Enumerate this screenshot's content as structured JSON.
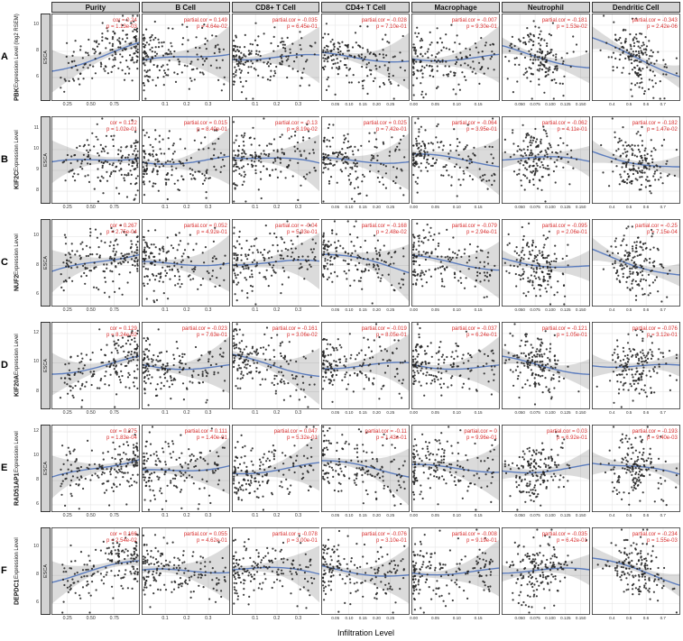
{
  "chart_data": {
    "type": "scatter",
    "xlabel": "Infiltration Level",
    "facet_label": "ESCA",
    "points_per_panel": 165,
    "colors": {
      "annotation": "#d93030",
      "fit_line": "#5b7cbe",
      "point": "#222222",
      "grid": "#e6e6e6",
      "strip_bg": "#d3d3d3",
      "band_opacity": 0.14
    },
    "columns": [
      {
        "label": "Purity",
        "range": [
          0.08,
          1.02
        ],
        "dist": "skewHigh",
        "center": 0.72,
        "xticks": [
          {
            "v": 0.25,
            "l": "0.25"
          },
          {
            "v": 0.5,
            "l": "0.50"
          },
          {
            "v": 0.75,
            "l": "0.75"
          }
        ]
      },
      {
        "label": "B Cell",
        "range": [
          -0.01,
          0.4
        ],
        "dist": "skewLow",
        "center": 0.16,
        "xticks": [
          {
            "v": 0.1,
            "l": "0.1"
          },
          {
            "v": 0.2,
            "l": "0.2"
          },
          {
            "v": 0.3,
            "l": "0.3"
          }
        ]
      },
      {
        "label": "CD8+ T Cell",
        "range": [
          -0.01,
          0.4
        ],
        "dist": "skewLow",
        "center": 0.16,
        "xticks": [
          {
            "v": 0.1,
            "l": "0.1"
          },
          {
            "v": 0.2,
            "l": "0.2"
          },
          {
            "v": 0.3,
            "l": "0.3"
          }
        ]
      },
      {
        "label": "CD4+ T Cell",
        "range": [
          0.0,
          0.32
        ],
        "dist": "skewLow",
        "center": 0.16,
        "xticks": [
          {
            "v": 0.05,
            "l": "0.05"
          },
          {
            "v": 0.1,
            "l": "0.10"
          },
          {
            "v": 0.15,
            "l": "0.15"
          },
          {
            "v": 0.2,
            "l": "0.20"
          },
          {
            "v": 0.25,
            "l": "0.25"
          }
        ]
      },
      {
        "label": "Macrophage",
        "range": [
          -0.005,
          0.2
        ],
        "dist": "skewLow",
        "center": 0.16,
        "xticks": [
          {
            "v": 0.0,
            "l": "0.00"
          },
          {
            "v": 0.05,
            "l": "0.05"
          },
          {
            "v": 0.1,
            "l": "0.10"
          },
          {
            "v": 0.15,
            "l": "0.15"
          }
        ]
      },
      {
        "label": "Neutrophil",
        "range": [
          0.02,
          0.165
        ],
        "dist": "normal",
        "center": 0.4,
        "xticks": [
          {
            "v": 0.05,
            "l": "0.050"
          },
          {
            "v": 0.075,
            "l": "0.075"
          },
          {
            "v": 0.1,
            "l": "0.100"
          },
          {
            "v": 0.125,
            "l": "0.125"
          },
          {
            "v": 0.15,
            "l": "0.150"
          }
        ]
      },
      {
        "label": "Dendritic Cell",
        "range": [
          0.28,
          0.8
        ],
        "dist": "normal",
        "center": 0.5,
        "xticks": [
          {
            "v": 0.4,
            "l": "0.4"
          },
          {
            "v": 0.5,
            "l": "0.5"
          },
          {
            "v": 0.6,
            "l": "0.6"
          },
          {
            "v": 0.7,
            "l": "0.7"
          }
        ]
      }
    ],
    "rows": [
      {
        "letter": "A",
        "gene": "PBK",
        "ylabel_suffix": " Expression Level (log2 RSEM)",
        "ylim": [
          4.2,
          10.9
        ],
        "yticks": [
          {
            "v": 6,
            "l": "6"
          },
          {
            "v": 8,
            "l": "8"
          },
          {
            "v": 10,
            "l": "10"
          }
        ],
        "panels": [
          {
            "r": 0.24,
            "r_label": "cor = 0.24",
            "p_label": "p = 1.13e-03"
          },
          {
            "r": 0.149,
            "r_label": "partial.cor = 0.149",
            "p_label": "p = 4.64e-02"
          },
          {
            "r": -0.035,
            "r_label": "partial.cor = -0.035",
            "p_label": "p = 6.45e-01"
          },
          {
            "r": -0.028,
            "r_label": "partial.cor = -0.028",
            "p_label": "p = 7.10e-01"
          },
          {
            "r": -0.007,
            "r_label": "partial.cor = -0.007",
            "p_label": "p = 9.30e-01"
          },
          {
            "r": -0.181,
            "r_label": "partial.cor = -0.181",
            "p_label": "p = 1.53e-02"
          },
          {
            "r": -0.343,
            "r_label": "partial.cor = -0.343",
            "p_label": "p = 2.42e-06"
          }
        ]
      },
      {
        "letter": "B",
        "gene": "KIF2C",
        "ylabel_suffix": " Expression Level",
        "ylim": [
          7.4,
          11.6
        ],
        "yticks": [
          {
            "v": 8,
            "l": "8"
          },
          {
            "v": 9,
            "l": "9"
          },
          {
            "v": 10,
            "l": "10"
          },
          {
            "v": 11,
            "l": "11"
          }
        ],
        "panels": [
          {
            "r": 0.122,
            "r_label": "cor = 0.122",
            "p_label": "p = 1.02e-01"
          },
          {
            "r": 0.015,
            "r_label": "partial.cor = 0.015",
            "p_label": "p = 8.40e-01"
          },
          {
            "r": -0.13,
            "r_label": "partial.cor = -0.13",
            "p_label": "p = 8.19e-02"
          },
          {
            "r": 0.025,
            "r_label": "partial.cor = 0.025",
            "p_label": "p = 7.42e-01"
          },
          {
            "r": -0.064,
            "r_label": "partial.cor = -0.064",
            "p_label": "p = 3.95e-01"
          },
          {
            "r": -0.062,
            "r_label": "partial.cor = -0.062",
            "p_label": "p = 4.11e-01"
          },
          {
            "r": -0.182,
            "r_label": "partial.cor = -0.182",
            "p_label": "p = 1.47e-02"
          }
        ]
      },
      {
        "letter": "C",
        "gene": "NUF2",
        "ylabel_suffix": " Expression Level",
        "ylim": [
          5.2,
          11.2
        ],
        "yticks": [
          {
            "v": 6,
            "l": "6"
          },
          {
            "v": 8,
            "l": "8"
          },
          {
            "v": 10,
            "l": "10"
          }
        ],
        "panels": [
          {
            "r": 0.267,
            "r_label": "cor = 0.267",
            "p_label": "p = 2.75e-04"
          },
          {
            "r": 0.052,
            "r_label": "partial.cor = 0.052",
            "p_label": "p = 4.92e-01"
          },
          {
            "r": -0.04,
            "r_label": "partial.cor = -0.04",
            "p_label": "p = 5.93e-01"
          },
          {
            "r": -0.168,
            "r_label": "partial.cor = -0.168",
            "p_label": "p = 2.48e-02"
          },
          {
            "r": -0.079,
            "r_label": "partial.cor = -0.079",
            "p_label": "p = 2.94e-01"
          },
          {
            "r": -0.095,
            "r_label": "partial.cor = -0.095",
            "p_label": "p = 2.06e-01"
          },
          {
            "r": -0.25,
            "r_label": "partial.cor = -0.25",
            "p_label": "p = 7.15e-04"
          }
        ]
      },
      {
        "letter": "D",
        "gene": "KIF20A",
        "ylabel_suffix": " Expression Level",
        "ylim": [
          6.8,
          12.8
        ],
        "yticks": [
          {
            "v": 8,
            "l": "8"
          },
          {
            "v": 10,
            "l": "10"
          },
          {
            "v": 12,
            "l": "12"
          }
        ],
        "panels": [
          {
            "r": 0.129,
            "r_label": "cor = 0.129",
            "p_label": "p = 8.24e-02"
          },
          {
            "r": -0.023,
            "r_label": "partial.cor = -0.023",
            "p_label": "p = 7.63e-01"
          },
          {
            "r": -0.161,
            "r_label": "partial.cor = -0.161",
            "p_label": "p = 3.06e-02"
          },
          {
            "r": -0.019,
            "r_label": "partial.cor = -0.019",
            "p_label": "p = 8.05e-01"
          },
          {
            "r": -0.037,
            "r_label": "partial.cor = -0.037",
            "p_label": "p = 6.24e-01"
          },
          {
            "r": -0.121,
            "r_label": "partial.cor = -0.121",
            "p_label": "p = 1.05e-01"
          },
          {
            "r": -0.076,
            "r_label": "partial.cor = -0.076",
            "p_label": "p = 3.12e-01"
          }
        ]
      },
      {
        "letter": "E",
        "gene": "RAD51AP1",
        "ylabel_suffix": " Expression Level",
        "ylim": [
          5.4,
          12.6
        ],
        "yticks": [
          {
            "v": 6,
            "l": "6"
          },
          {
            "v": 8,
            "l": "8"
          },
          {
            "v": 10,
            "l": "10"
          },
          {
            "v": 12,
            "l": "12"
          }
        ],
        "panels": [
          {
            "r": 0.275,
            "r_label": "cor = 0.275",
            "p_label": "p = 1.83e-04"
          },
          {
            "r": 0.111,
            "r_label": "partial.cor = 0.111",
            "p_label": "p = 1.40e-01"
          },
          {
            "r": 0.047,
            "r_label": "partial.cor = 0.047",
            "p_label": "p = 5.32e-01"
          },
          {
            "r": -0.11,
            "r_label": "partial.cor = -0.11",
            "p_label": "p = 1.43e-01"
          },
          {
            "r": 0.0,
            "r_label": "partial.cor = 0",
            "p_label": "p = 9.96e-01"
          },
          {
            "r": 0.03,
            "r_label": "partial.cor = 0.03",
            "p_label": "p = 6.92e-01"
          },
          {
            "r": -0.193,
            "r_label": "partial.cor = -0.193",
            "p_label": "p = 9.40e-03"
          }
        ]
      },
      {
        "letter": "F",
        "gene": "DEPDC1",
        "ylabel_suffix": " Expression Level",
        "ylim": [
          5.2,
          11.4
        ],
        "yticks": [
          {
            "v": 6,
            "l": "6"
          },
          {
            "v": 8,
            "l": "8"
          },
          {
            "v": 10,
            "l": "10"
          }
        ],
        "panels": [
          {
            "r": 0.166,
            "r_label": "cor = 0.166",
            "p_label": "p = 2.54e-02"
          },
          {
            "r": 0.055,
            "r_label": "partial.cor = 0.055",
            "p_label": "p = 4.62e-01"
          },
          {
            "r": -0.078,
            "r_label": "partial.cor = -0.078",
            "p_label": "p = 3.00e-01"
          },
          {
            "r": -0.076,
            "r_label": "partial.cor = -0.076",
            "p_label": "p = 3.10e-01"
          },
          {
            "r": -0.008,
            "r_label": "partial.cor = -0.008",
            "p_label": "p = 9.19e-01"
          },
          {
            "r": -0.035,
            "r_label": "partial.cor = -0.035",
            "p_label": "p = 6.42e-01"
          },
          {
            "r": -0.234,
            "r_label": "partial.cor = -0.234",
            "p_label": "p = 1.55e-03"
          }
        ]
      }
    ]
  }
}
